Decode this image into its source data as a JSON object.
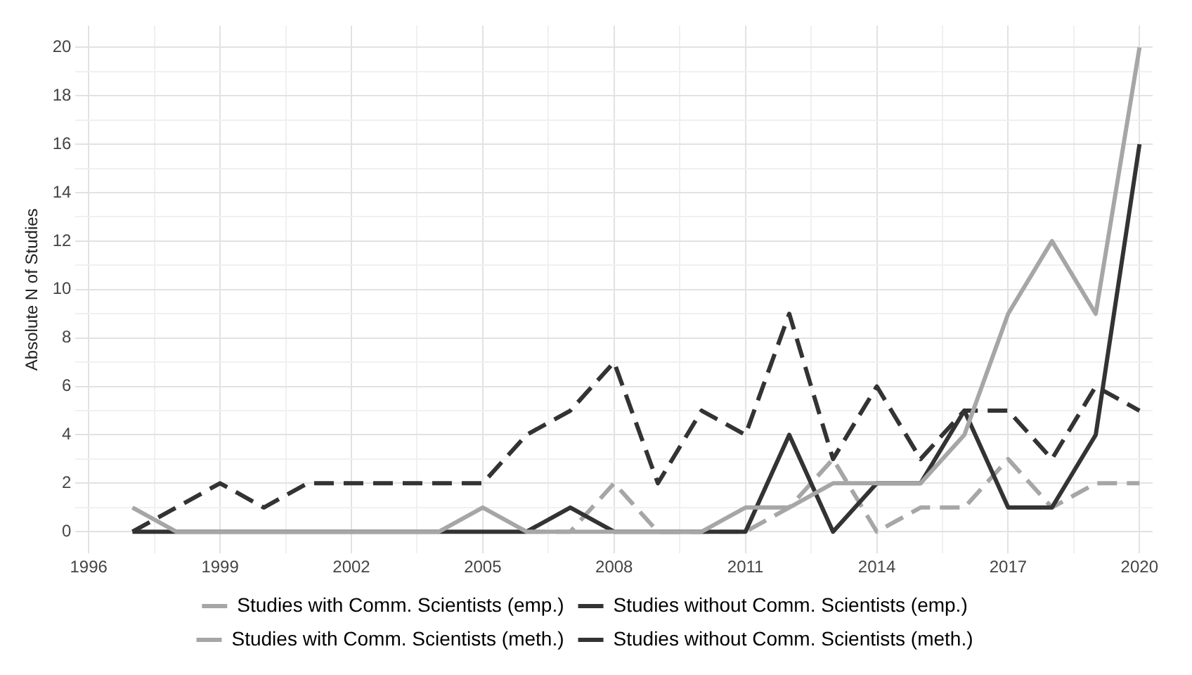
{
  "chart_data": {
    "type": "line",
    "ylabel": "Absolute N of Studies",
    "x": [
      1997,
      1998,
      1999,
      2000,
      2001,
      2002,
      2003,
      2004,
      2005,
      2006,
      2007,
      2008,
      2009,
      2010,
      2011,
      2012,
      2013,
      2014,
      2015,
      2016,
      2017,
      2018,
      2019,
      2020
    ],
    "series": [
      {
        "name": "Studies with Comm. Scientists (emp.)",
        "color": "#a6a6a6",
        "line_style": "solid",
        "values": [
          1,
          0,
          0,
          0,
          0,
          0,
          0,
          0,
          1,
          0,
          0,
          0,
          0,
          0,
          1,
          1,
          2,
          2,
          2,
          4,
          9,
          12,
          9,
          20
        ]
      },
      {
        "name": "Studies without Comm. Scientists (emp.)",
        "color": "#333333",
        "line_style": "solid",
        "values": [
          0,
          0,
          0,
          0,
          0,
          0,
          0,
          0,
          0,
          0,
          1,
          0,
          0,
          0,
          0,
          4,
          0,
          2,
          2,
          5,
          1,
          1,
          4,
          16
        ]
      },
      {
        "name": "Studies with Comm. Scientists (meth.)",
        "color": "#a6a6a6",
        "line_style": "dashed",
        "values": [
          null,
          null,
          null,
          null,
          null,
          null,
          null,
          null,
          null,
          0,
          0,
          2,
          0,
          0,
          0,
          1,
          3,
          0,
          1,
          1,
          3,
          1,
          2,
          2
        ]
      },
      {
        "name": "Studies without Comm. Scientists (meth.)",
        "color": "#333333",
        "line_style": "dashed",
        "values": [
          0,
          1,
          2,
          1,
          2,
          2,
          2,
          2,
          2,
          4,
          5,
          7,
          2,
          5,
          4,
          9,
          3,
          6,
          3,
          5,
          5,
          3,
          6,
          5
        ]
      }
    ],
    "xlim": [
      1995.7,
      2020.3
    ],
    "xticks": [
      1996,
      {
        "value": 1997.5,
        "label": null
      },
      1999,
      {
        "value": 2000.5,
        "label": null
      },
      2002,
      {
        "value": 2003.5,
        "label": null
      },
      2005,
      {
        "value": 2006.5,
        "label": null
      },
      2008,
      {
        "value": 2009.5,
        "label": null
      },
      2011,
      {
        "value": 2012.5,
        "label": null
      },
      2014,
      {
        "value": 2015.5,
        "label": null
      },
      2017,
      {
        "value": 2018.5,
        "label": null
      },
      2020
    ],
    "ylim": [
      -0.9,
      20.9
    ],
    "yticks": [
      0,
      {
        "value": 1,
        "label": null
      },
      2,
      {
        "value": 3,
        "label": null
      },
      4,
      {
        "value": 5,
        "label": null
      },
      6,
      {
        "value": 7,
        "label": null
      },
      8,
      {
        "value": 9,
        "label": null
      },
      10,
      {
        "value": 11,
        "label": null
      },
      12,
      {
        "value": 13,
        "label": null
      },
      14,
      {
        "value": 15,
        "label": null
      },
      16,
      {
        "value": 17,
        "label": null
      },
      18,
      {
        "value": 19,
        "label": null
      },
      20
    ],
    "grid": true,
    "legend": "bottom"
  }
}
